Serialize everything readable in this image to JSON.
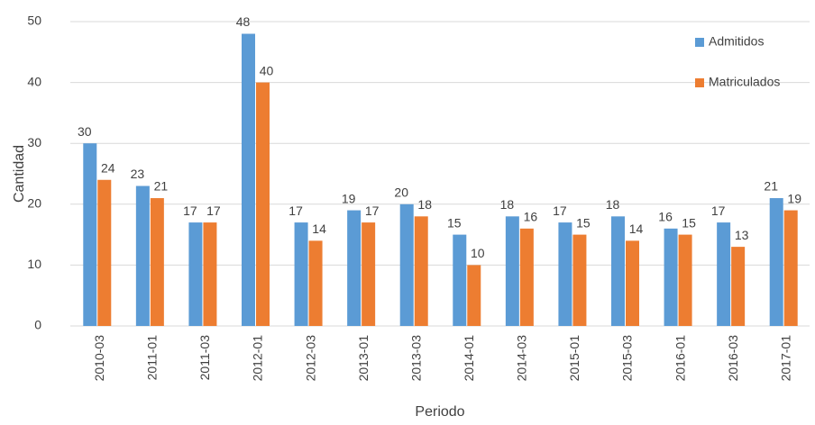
{
  "chart_data": {
    "type": "bar",
    "x_label": "Periodo",
    "y_label": "Cantidad",
    "categories": [
      "2010-03",
      "2011-01",
      "2011-03",
      "2012-01",
      "2012-03",
      "2013-01",
      "2013-03",
      "2014-01",
      "2014-03",
      "2015-01",
      "2015-03",
      "2016-01",
      "2016-03",
      "2017-01"
    ],
    "series": [
      {
        "name": "Admitidos",
        "color": "#5b9bd5",
        "values": [
          30,
          23,
          17,
          48,
          17,
          19,
          20,
          15,
          18,
          17,
          18,
          16,
          17,
          21
        ]
      },
      {
        "name": "Matriculados",
        "color": "#ed7d31",
        "values": [
          24,
          21,
          17,
          40,
          14,
          17,
          18,
          10,
          16,
          15,
          14,
          15,
          13,
          19
        ]
      }
    ],
    "ylim": [
      0,
      50
    ],
    "yticks": [
      0,
      10,
      20,
      30,
      40,
      50
    ],
    "grid": true,
    "legend": "top-right"
  }
}
